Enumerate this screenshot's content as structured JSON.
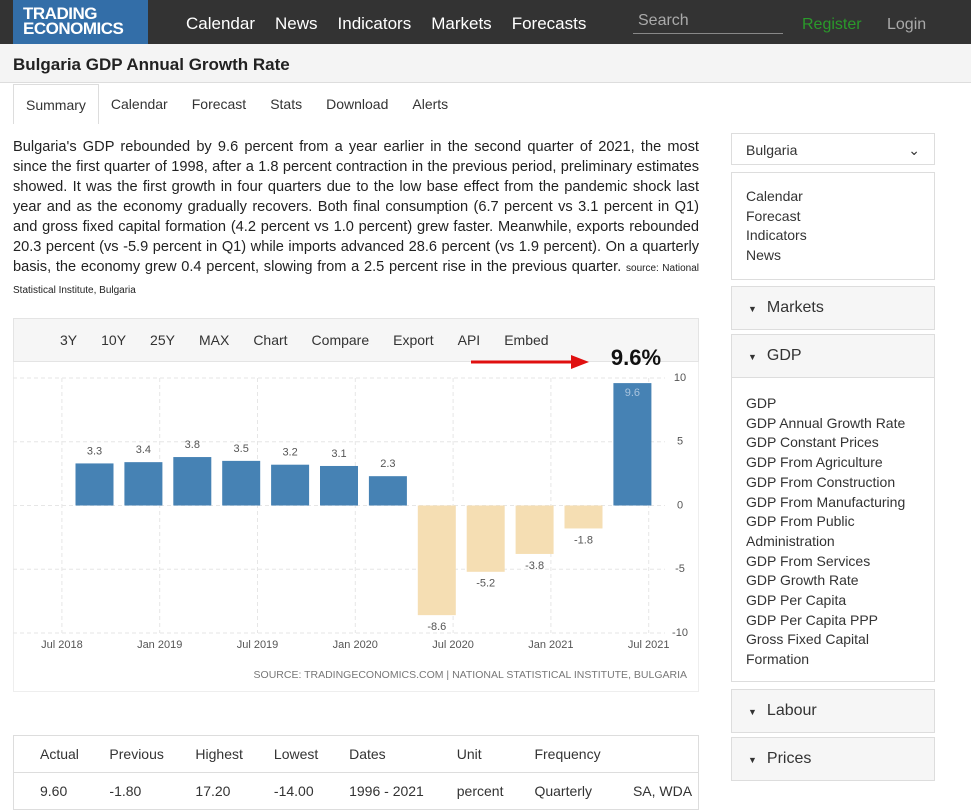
{
  "nav": {
    "logo": "TRADING ECONOMICS",
    "menu": [
      "Calendar",
      "News",
      "Indicators",
      "Markets",
      "Forecasts"
    ],
    "search_placeholder": "Search",
    "register": "Register",
    "login": "Login"
  },
  "header": {
    "title": "Bulgaria GDP Annual Growth Rate"
  },
  "tabs": [
    "Summary",
    "Calendar",
    "Forecast",
    "Stats",
    "Download",
    "Alerts"
  ],
  "summary": {
    "text": "Bulgaria's GDP rebounded by 9.6 percent from a year earlier in the second quarter of 2021, the most since the first quarter of 1998, after a 1.8 percent contraction in the previous period, preliminary estimates showed. It was the first growth in four quarters due to the low base effect from the pandemic shock last year and as the economy gradually recovers. Both final consumption (6.7 percent vs 3.1 percent in Q1) and gross fixed capital formation (4.2 percent vs 1.0 percent) grew faster. Meanwhile, exports rebounded 20.3 percent (vs -5.9 percent in Q1) while imports advanced 28.6 percent (vs 1.9 percent). On a quarterly basis, the economy grew 0.4 percent, slowing from a 2.5 percent rise in the previous quarter.",
    "source": "source: National Statistical Institute, Bulgaria"
  },
  "toolbar": [
    "3Y",
    "10Y",
    "25Y",
    "MAX",
    "Chart",
    "Compare",
    "Export",
    "API",
    "Embed"
  ],
  "chart_data": {
    "type": "bar",
    "annotation": "9.6%",
    "x": [
      "2018-09",
      "2018-12",
      "2019-03",
      "2019-06",
      "2019-09",
      "2019-12",
      "2020-03",
      "2020-06",
      "2020-09",
      "2020-12",
      "2021-03",
      "2021-06"
    ],
    "values": [
      3.3,
      3.4,
      3.8,
      3.5,
      3.2,
      3.1,
      2.3,
      -8.6,
      -5.2,
      -3.8,
      -1.8,
      9.6
    ],
    "colors": {
      "positive": "#4682b4",
      "negative": "#f5deb3"
    },
    "xlim": [
      "2018-04",
      "2021-08"
    ],
    "xticks": [
      {
        "value": "2018-07",
        "label": "Jul 2018"
      },
      {
        "value": "2019-01",
        "label": "Jan 2019"
      },
      {
        "value": "2019-07",
        "label": "Jul 2019"
      },
      {
        "value": "2020-01",
        "label": "Jan 2020"
      },
      {
        "value": "2020-07",
        "label": "Jul 2020"
      },
      {
        "value": "2021-01",
        "label": "Jan 2021"
      },
      {
        "value": "2021-07",
        "label": "Jul 2021"
      }
    ],
    "ylim": [
      -10,
      10
    ],
    "yticks": [
      10,
      5,
      0,
      -5,
      -10
    ],
    "grid": true,
    "source": "SOURCE: TRADINGECONOMICS.COM | NATIONAL STATISTICAL INSTITUTE, BULGARIA"
  },
  "table": {
    "headers": [
      "Actual",
      "Previous",
      "Highest",
      "Lowest",
      "Dates",
      "Unit",
      "Frequency"
    ],
    "rows": [
      [
        "9.60",
        "-1.80",
        "17.20",
        "-14.00",
        "1996 - 2021",
        "percent",
        "Quarterly",
        "SA, WDA"
      ]
    ]
  },
  "sidebar": {
    "country": "Bulgaria",
    "links": [
      "Calendar",
      "Forecast",
      "Indicators",
      "News"
    ],
    "sections": [
      "Markets",
      "GDP",
      "Labour",
      "Prices"
    ],
    "gdp_links": [
      "GDP",
      "GDP Annual Growth Rate",
      "GDP Constant Prices",
      "GDP From Agriculture",
      "GDP From Construction",
      "GDP From Manufacturing",
      "GDP From Public Administration",
      "GDP From Services",
      "GDP Growth Rate",
      "GDP Per Capita",
      "GDP Per Capita PPP",
      "Gross Fixed Capital Formation"
    ]
  }
}
